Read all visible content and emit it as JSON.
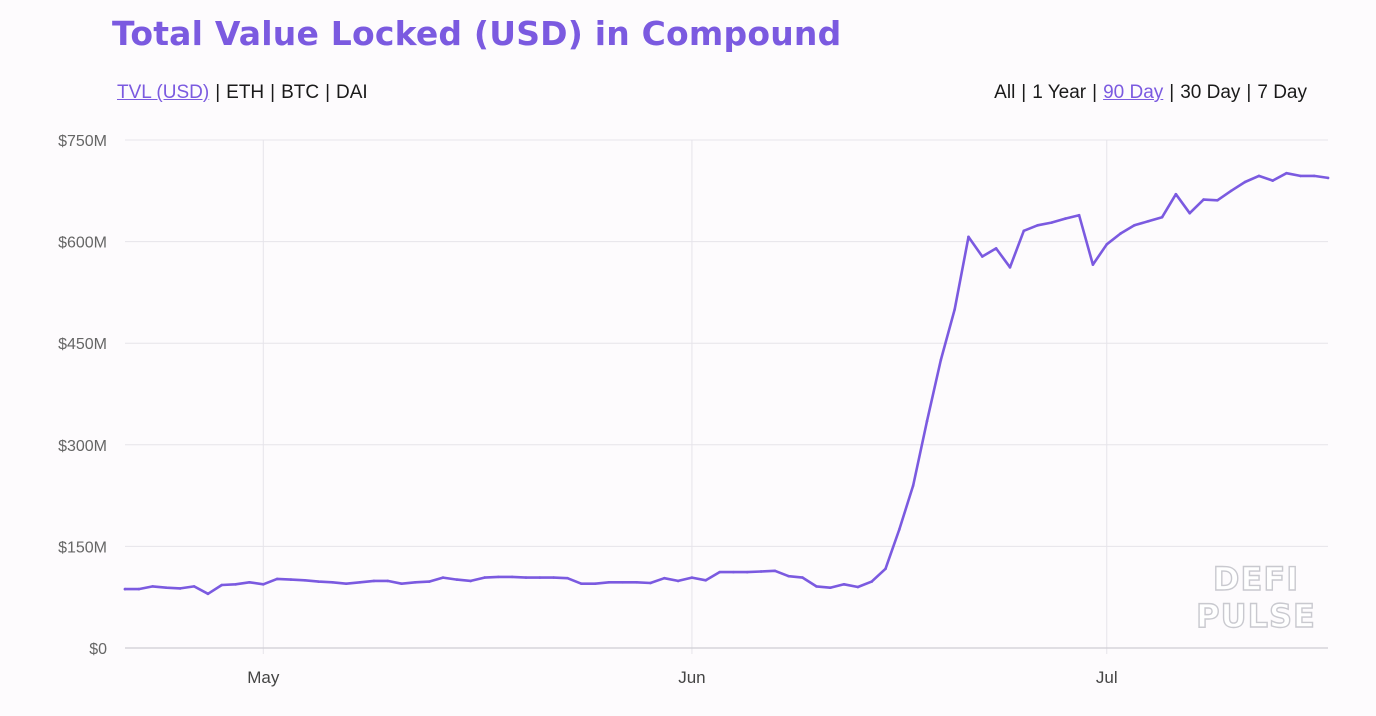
{
  "title": "Total Value Locked (USD) in Compound",
  "colors": {
    "accent": "#7b5ae0",
    "gridline": "#e6e4ea",
    "text": "#1a1a1a"
  },
  "metric_filters": [
    {
      "label": "TVL (USD)",
      "active": true
    },
    {
      "label": "ETH",
      "active": false
    },
    {
      "label": "BTC",
      "active": false
    },
    {
      "label": "DAI",
      "active": false
    }
  ],
  "range_filters": [
    {
      "label": "All",
      "active": false
    },
    {
      "label": "1 Year",
      "active": false
    },
    {
      "label": "90 Day",
      "active": true
    },
    {
      "label": "30 Day",
      "active": false
    },
    {
      "label": "7 Day",
      "active": false
    }
  ],
  "watermark": [
    "DEFI",
    "PULSE"
  ],
  "chart_data": {
    "type": "line",
    "title": "Total Value Locked (USD) in Compound",
    "xlabel": "",
    "ylabel": "",
    "x_start": "Apr 21",
    "x_ticks": [
      {
        "label": "May",
        "day": 10
      },
      {
        "label": "Jun",
        "day": 41
      },
      {
        "label": "Jul",
        "day": 71
      }
    ],
    "y_ticks": [
      {
        "label": "$0",
        "value": 0
      },
      {
        "label": "$150M",
        "value": 150
      },
      {
        "label": "$300M",
        "value": 300
      },
      {
        "label": "$450M",
        "value": 450
      },
      {
        "label": "$600M",
        "value": 600
      },
      {
        "label": "$750M",
        "value": 750
      }
    ],
    "ylim": [
      0,
      750
    ],
    "y_unit": "USD millions",
    "grid": true,
    "series": [
      {
        "color": "#7b5ae0",
        "values": [
          87,
          87,
          91,
          89,
          88,
          91,
          80,
          93,
          94,
          97,
          94,
          102,
          101,
          100,
          98,
          97,
          95,
          97,
          99,
          99,
          95,
          97,
          98,
          104,
          101,
          99,
          104,
          105,
          105,
          104,
          104,
          104,
          103,
          95,
          95,
          97,
          97,
          97,
          96,
          103,
          99,
          104,
          100,
          112,
          112,
          112,
          113,
          114,
          106,
          104,
          91,
          89,
          94,
          90,
          98,
          117,
          175,
          240,
          335,
          425,
          500,
          607,
          578,
          590,
          562,
          616,
          624,
          628,
          634,
          639,
          566,
          596,
          612,
          624,
          630,
          636,
          670,
          642,
          662,
          661,
          675,
          688,
          697,
          690,
          701,
          697,
          697,
          694
        ]
      }
    ]
  }
}
